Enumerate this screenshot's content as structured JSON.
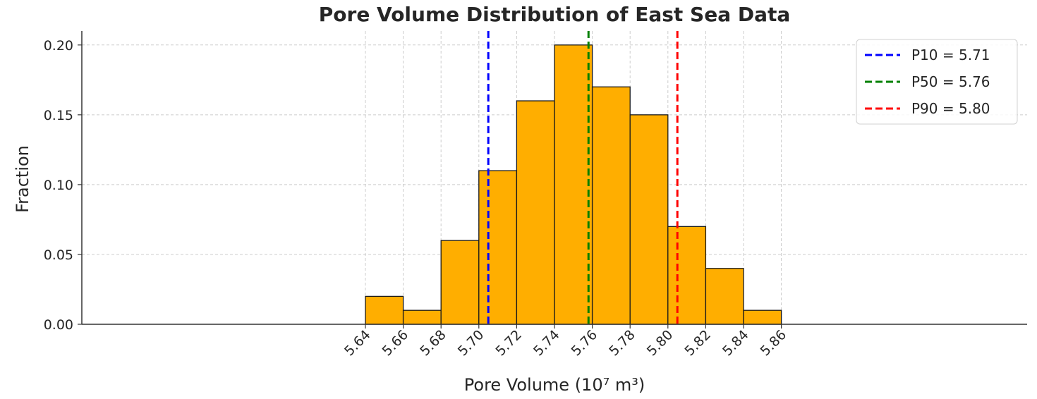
{
  "chart_data": {
    "type": "bar",
    "title": "Pore Volume Distribution of East Sea Data",
    "xlabel": "Pore Volume (10⁷ m³)",
    "ylabel": "Fraction",
    "xlim": [
      5.49,
      5.99
    ],
    "ylim": [
      0,
      0.21
    ],
    "x_ticks": [
      "5.64",
      "5.66",
      "5.68",
      "5.70",
      "5.72",
      "5.74",
      "5.76",
      "5.78",
      "5.80",
      "5.82",
      "5.84",
      "5.86"
    ],
    "y_ticks": [
      "0.00",
      "0.05",
      "0.10",
      "0.15",
      "0.20"
    ],
    "grid": true,
    "bins": [
      {
        "start": 5.64,
        "end": 5.66,
        "value": 0.02
      },
      {
        "start": 5.66,
        "end": 5.68,
        "value": 0.01
      },
      {
        "start": 5.68,
        "end": 5.7,
        "value": 0.06
      },
      {
        "start": 5.7,
        "end": 5.72,
        "value": 0.11
      },
      {
        "start": 5.72,
        "end": 5.74,
        "value": 0.16
      },
      {
        "start": 5.74,
        "end": 5.76,
        "value": 0.2
      },
      {
        "start": 5.76,
        "end": 5.78,
        "value": 0.17
      },
      {
        "start": 5.78,
        "end": 5.8,
        "value": 0.15
      },
      {
        "start": 5.8,
        "end": 5.82,
        "value": 0.07
      },
      {
        "start": 5.82,
        "end": 5.84,
        "value": 0.04
      },
      {
        "start": 5.84,
        "end": 5.86,
        "value": 0.01
      }
    ],
    "bar_color": "#ffae00",
    "reference_lines": [
      {
        "label": "P10 = 5.71",
        "x": 5.705,
        "color": "#0000ff"
      },
      {
        "label": "P50 = 5.76",
        "x": 5.758,
        "color": "#008000"
      },
      {
        "label": "P90 = 5.80",
        "x": 5.805,
        "color": "#ff0000"
      }
    ],
    "legend_position": "top-right"
  }
}
